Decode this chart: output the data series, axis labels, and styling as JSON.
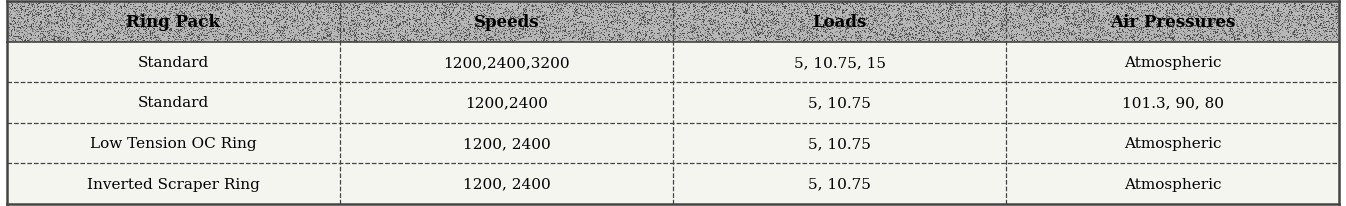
{
  "headers": [
    "Ring Pack",
    "Speeds",
    "Loads",
    "Air Pressures"
  ],
  "rows": [
    [
      "Standard",
      "1200,2400,3200",
      "5, 10.75, 15",
      "Atmospheric"
    ],
    [
      "Standard",
      "1200,2400",
      "5, 10.75",
      "101.3, 90, 80"
    ],
    [
      "Low Tension OC Ring",
      "1200, 2400",
      "5, 10.75",
      "Atmospheric"
    ],
    [
      "Inverted Scraper Ring",
      "1200, 2400",
      "5, 10.75",
      "Atmospheric"
    ]
  ],
  "col_starts": [
    0.0,
    0.25,
    0.5,
    0.75
  ],
  "col_ends": [
    0.25,
    0.5,
    0.75,
    1.0
  ],
  "border_color": "#444444",
  "text_color": "#000000",
  "header_fontsize": 12,
  "cell_fontsize": 11,
  "figsize": [
    13.46,
    2.07
  ],
  "dpi": 100,
  "header_noise_color": "#888888",
  "header_base_color": "#b0b0b0",
  "cell_bg_color": "#f5f5f0"
}
